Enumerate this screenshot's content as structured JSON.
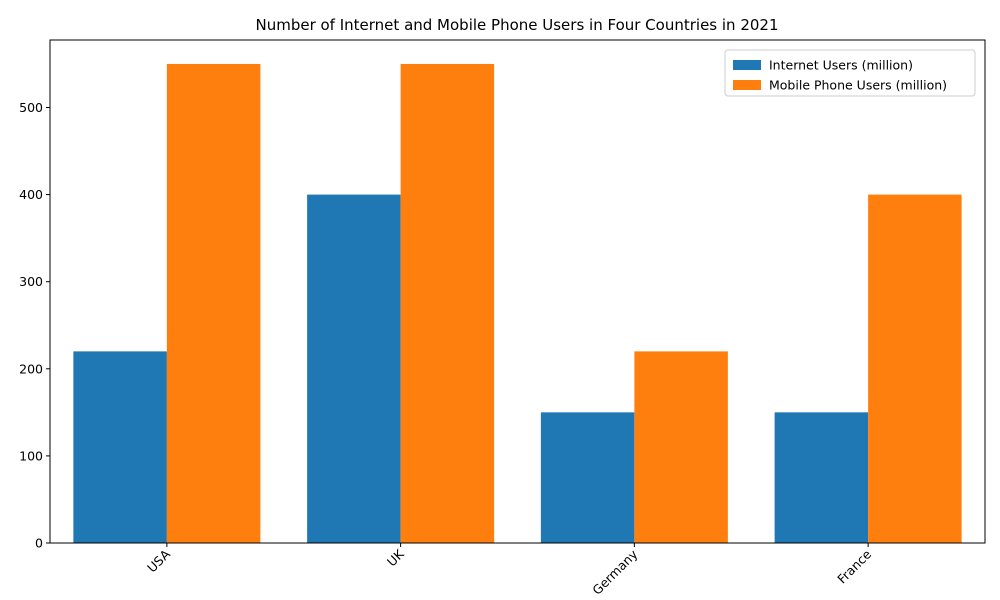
{
  "chart_data": {
    "type": "bar",
    "title": "Number of Internet and Mobile Phone Users in Four Countries in 2021",
    "xlabel": "",
    "ylabel": "",
    "categories": [
      "USA",
      "UK",
      "Germany",
      "France"
    ],
    "series": [
      {
        "name": "Internet Users (million)",
        "values": [
          220,
          400,
          150,
          150
        ],
        "color": "#1f77b4"
      },
      {
        "name": "Mobile Phone Users (million)",
        "values": [
          550,
          550,
          220,
          400
        ],
        "color": "#ff7f0e"
      }
    ],
    "ylim": [
      0,
      577.5
    ],
    "yticks": [
      0,
      100,
      200,
      300,
      400,
      500
    ],
    "grid": false,
    "legend_position": "top-right",
    "xtick_rotation": 45
  }
}
